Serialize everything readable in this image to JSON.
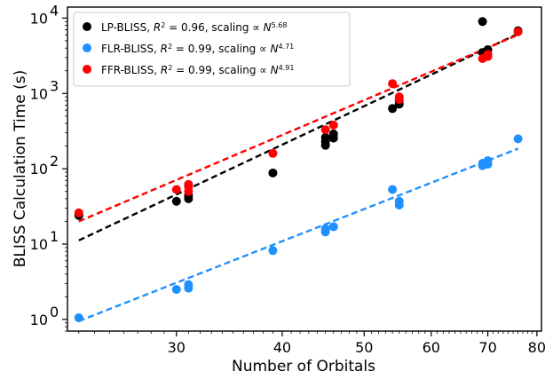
{
  "chart_data": {
    "type": "scatter",
    "title": "",
    "xlabel": "Number of Orbitals",
    "ylabel": "BLISS Calculation Time (s)",
    "xscale": "log",
    "yscale": "log",
    "xlim": [
      22.3,
      81
    ],
    "ylim": [
      0.7,
      14000
    ],
    "xticks": [
      {
        "value": 30,
        "label": "30"
      },
      {
        "value": 40,
        "label": "40"
      },
      {
        "value": 50,
        "label": "50"
      },
      {
        "value": 60,
        "label": "60"
      },
      {
        "value": 70,
        "label": "70"
      },
      {
        "value": 80,
        "label": "80"
      }
    ],
    "yticks": [
      {
        "value": 1,
        "base": "10",
        "exp": "0"
      },
      {
        "value": 10,
        "base": "10",
        "exp": "1"
      },
      {
        "value": 100,
        "base": "10",
        "exp": "2"
      },
      {
        "value": 1000,
        "base": "10",
        "exp": "3"
      },
      {
        "value": 10000,
        "base": "10",
        "exp": "4"
      }
    ],
    "legend_position": "top-left",
    "series": [
      {
        "name": "LP-BLISS",
        "legend_prefix": "LP-BLISS, ",
        "r2": "0.96",
        "exponent": "5.68",
        "color": "#000000",
        "points": [
          [
            23,
            25
          ],
          [
            23,
            24
          ],
          [
            30,
            37
          ],
          [
            31,
            40
          ],
          [
            31,
            44
          ],
          [
            39,
            88
          ],
          [
            45,
            205
          ],
          [
            45,
            230
          ],
          [
            45,
            260
          ],
          [
            46,
            255
          ],
          [
            46,
            290
          ],
          [
            54,
            630
          ],
          [
            55,
            720
          ],
          [
            55,
            800
          ],
          [
            69,
            3500
          ],
          [
            69,
            9000
          ],
          [
            70,
            3800
          ],
          [
            76,
            6800
          ]
        ],
        "fit": [
          [
            23,
            11.2
          ],
          [
            76,
            6200
          ]
        ]
      },
      {
        "name": "FLR-BLISS",
        "legend_prefix": "FLR-BLISS, ",
        "r2": "0.99",
        "exponent": "4.71",
        "color": "#1e90ff",
        "points": [
          [
            23,
            1.05
          ],
          [
            30,
            2.5
          ],
          [
            31,
            2.6
          ],
          [
            31,
            2.9
          ],
          [
            39,
            8.2
          ],
          [
            45,
            14.5
          ],
          [
            45,
            16
          ],
          [
            46,
            17
          ],
          [
            54,
            53
          ],
          [
            55,
            33
          ],
          [
            55,
            37
          ],
          [
            69,
            110
          ],
          [
            69,
            118
          ],
          [
            70,
            115
          ],
          [
            70,
            128
          ],
          [
            76,
            250
          ]
        ],
        "fit": [
          [
            23,
            0.95
          ],
          [
            76,
            185
          ]
        ]
      },
      {
        "name": "FFR-BLISS",
        "legend_prefix": "FFR-BLISS, ",
        "r2": "0.99",
        "exponent": "4.91",
        "color": "#ff0000",
        "points": [
          [
            23,
            26
          ],
          [
            30,
            53
          ],
          [
            31,
            50
          ],
          [
            31,
            58
          ],
          [
            31,
            62
          ],
          [
            39,
            160
          ],
          [
            45,
            330
          ],
          [
            46,
            380
          ],
          [
            54,
            1350
          ],
          [
            55,
            830
          ],
          [
            55,
            900
          ],
          [
            69,
            2900
          ],
          [
            70,
            3100
          ],
          [
            70,
            3300
          ],
          [
            76,
            6600
          ]
        ],
        "fit": [
          [
            23,
            20
          ],
          [
            76,
            6000
          ]
        ]
      }
    ]
  }
}
